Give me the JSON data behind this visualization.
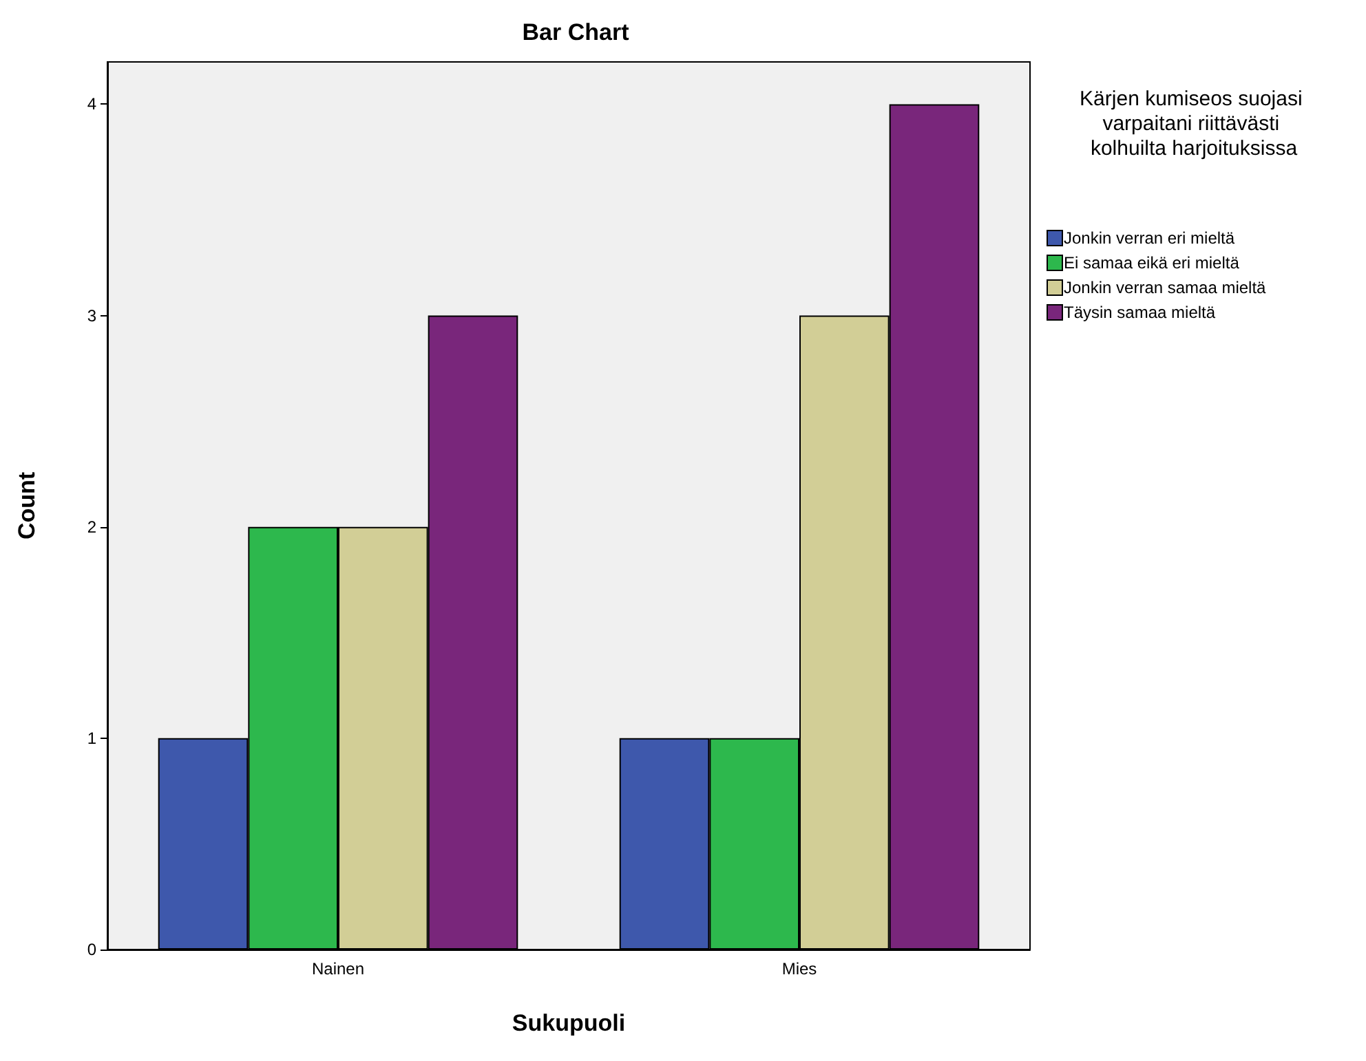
{
  "chart_data": {
    "type": "bar",
    "title": "Bar Chart",
    "xlabel": "Sukupuoli",
    "ylabel": "Count",
    "legend_title": "Kärjen kumiseos suojasi varpaitani riittävästi kolhuilta harjoituksissa",
    "categories": [
      "Nainen",
      "Mies"
    ],
    "series": [
      {
        "name": "Jonkin verran eri mieltä",
        "color": "#3e58ac",
        "values": [
          1,
          1
        ]
      },
      {
        "name": "Ei samaa eikä eri mieltä",
        "color": "#2db84d",
        "values": [
          2,
          1
        ]
      },
      {
        "name": "Jonkin verran samaa mieltä",
        "color": "#d2ce96",
        "values": [
          2,
          3
        ]
      },
      {
        "name": "Täysin samaa mieltä",
        "color": "#79267b",
        "values": [
          3,
          4
        ]
      }
    ],
    "ylim": [
      0,
      4.2
    ],
    "yticks": [
      0,
      1,
      2,
      3,
      4
    ],
    "grid": false,
    "legend": "top right"
  }
}
